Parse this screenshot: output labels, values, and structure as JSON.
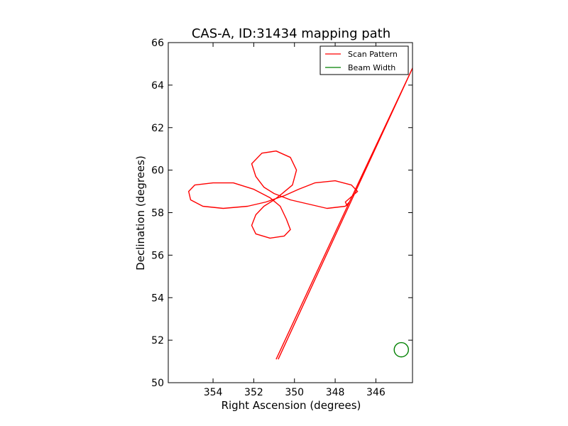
{
  "chart_data": {
    "type": "line",
    "title": "CAS-A, ID:31434 mapping path",
    "xlabel": "Right Ascension (degrees)",
    "ylabel": "Declination (degrees)",
    "xlim": [
      356.2,
      344.2
    ],
    "ylim": [
      50,
      66
    ],
    "x_inverted": true,
    "xticks": [
      354,
      352,
      350,
      348,
      346
    ],
    "yticks": [
      50,
      52,
      54,
      56,
      58,
      60,
      62,
      64,
      66
    ],
    "grid": false,
    "legend_position": "upper right",
    "series": [
      {
        "name": "Scan Pattern",
        "color": "#ff0000",
        "points": [
          [
            350.8,
            51.1
          ],
          [
            344.2,
            64.8
          ],
          [
            347.4,
            58.3
          ],
          [
            347.5,
            58.5
          ],
          [
            346.9,
            59.0
          ],
          [
            347.2,
            59.3
          ],
          [
            348.0,
            59.5
          ],
          [
            349.0,
            59.4
          ],
          [
            349.8,
            59.1
          ],
          [
            350.5,
            58.8
          ],
          [
            351.4,
            58.5
          ],
          [
            352.3,
            58.3
          ],
          [
            353.5,
            58.2
          ],
          [
            354.5,
            58.3
          ],
          [
            355.1,
            58.6
          ],
          [
            355.2,
            59.0
          ],
          [
            354.9,
            59.3
          ],
          [
            354.0,
            59.4
          ],
          [
            353.0,
            59.4
          ],
          [
            352.0,
            59.1
          ],
          [
            351.2,
            58.7
          ],
          [
            350.7,
            58.3
          ],
          [
            350.4,
            57.7
          ],
          [
            350.2,
            57.2
          ],
          [
            350.5,
            56.9
          ],
          [
            351.2,
            56.8
          ],
          [
            351.9,
            57.0
          ],
          [
            352.1,
            57.4
          ],
          [
            351.9,
            57.9
          ],
          [
            351.5,
            58.3
          ],
          [
            351.0,
            58.6
          ],
          [
            350.6,
            58.9
          ],
          [
            350.1,
            59.3
          ],
          [
            349.9,
            60.0
          ],
          [
            350.2,
            60.6
          ],
          [
            350.9,
            60.9
          ],
          [
            351.6,
            60.8
          ],
          [
            352.1,
            60.3
          ],
          [
            351.9,
            59.7
          ],
          [
            351.5,
            59.2
          ],
          [
            351.0,
            58.9
          ],
          [
            350.2,
            58.6
          ],
          [
            349.3,
            58.4
          ],
          [
            348.4,
            58.2
          ],
          [
            347.5,
            58.3
          ],
          [
            347.3,
            58.5
          ],
          [
            350.9,
            51.1
          ]
        ]
      },
      {
        "name": "Beam Width",
        "color": "#008000",
        "circle": {
          "center": [
            344.75,
            51.55
          ],
          "diameter_deg": 0.7
        }
      }
    ]
  }
}
